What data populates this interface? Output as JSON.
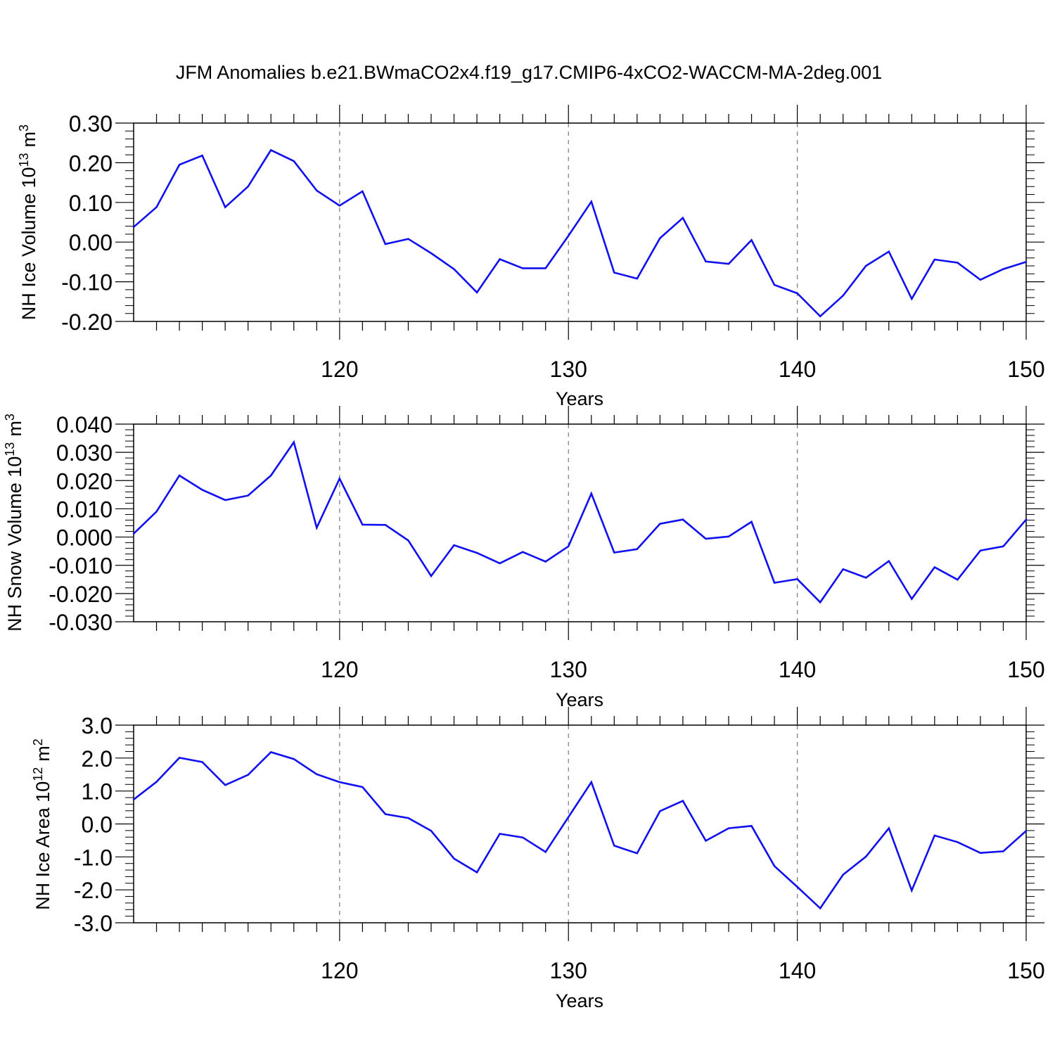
{
  "title": "JFM Anomalies b.e21.BWmaCO2x4.f19_g17.CMIP6-4xCO2-WACCM-MA-2deg.001",
  "colors": {
    "line": "#1010f0",
    "axis": "#000000",
    "grid": "#777777"
  },
  "chart_data": [
    {
      "type": "line",
      "ylabel_main": "NH Ice Volume 10",
      "ylabel_exp": "13",
      "ylabel_unit": "m",
      "ylabel_unit_exp": "3",
      "xlabel": "Years",
      "xlim": [
        111,
        150
      ],
      "ylim": [
        -0.2,
        0.3
      ],
      "ytick_values": [
        -0.2,
        -0.1,
        0.0,
        0.1,
        0.2,
        0.3
      ],
      "ytick_labels": [
        "-0.20",
        "-0.10",
        "0.00",
        "0.10",
        "0.20",
        "0.30"
      ],
      "xtick_values": [
        120,
        130,
        140,
        150
      ],
      "xtick_labels": [
        "120",
        "130",
        "140",
        "150"
      ],
      "gridlines_x": [
        120,
        130,
        140
      ],
      "x": [
        111,
        112,
        113,
        114,
        115,
        116,
        117,
        118,
        119,
        120,
        121,
        122,
        123,
        124,
        125,
        126,
        127,
        128,
        129,
        130,
        131,
        132,
        133,
        134,
        135,
        136,
        137,
        138,
        139,
        140,
        141,
        142,
        143,
        144,
        145,
        146,
        147,
        148,
        149,
        150
      ],
      "values": [
        0.038,
        0.088,
        0.195,
        0.218,
        0.088,
        0.14,
        0.232,
        0.204,
        0.13,
        0.092,
        0.128,
        -0.005,
        0.008,
        -0.028,
        -0.068,
        -0.127,
        -0.043,
        -0.066,
        -0.066,
        0.016,
        0.102,
        -0.077,
        -0.092,
        0.01,
        0.061,
        -0.049,
        -0.055,
        0.005,
        -0.108,
        -0.129,
        -0.187,
        -0.135,
        -0.06,
        -0.024,
        -0.143,
        -0.044,
        -0.052,
        -0.095,
        -0.068,
        -0.05
      ]
    },
    {
      "type": "line",
      "ylabel_main": "NH Snow Volume 10",
      "ylabel_exp": "13",
      "ylabel_unit": "m",
      "ylabel_unit_exp": "3",
      "xlabel": "Years",
      "xlim": [
        111,
        150
      ],
      "ylim": [
        -0.03,
        0.04
      ],
      "ytick_values": [
        -0.03,
        -0.02,
        -0.01,
        0.0,
        0.01,
        0.02,
        0.03,
        0.04
      ],
      "ytick_labels": [
        "-0.030",
        "-0.020",
        "-0.010",
        "0.000",
        "0.010",
        "0.020",
        "0.030",
        "0.040"
      ],
      "xtick_values": [
        120,
        130,
        140,
        150
      ],
      "xtick_labels": [
        "120",
        "130",
        "140",
        "150"
      ],
      "gridlines_x": [
        120,
        130,
        140
      ],
      "x": [
        111,
        112,
        113,
        114,
        115,
        116,
        117,
        118,
        119,
        120,
        121,
        122,
        123,
        124,
        125,
        126,
        127,
        128,
        129,
        130,
        131,
        132,
        133,
        134,
        135,
        136,
        137,
        138,
        139,
        140,
        141,
        142,
        143,
        144,
        145,
        146,
        147,
        148,
        149,
        150
      ],
      "values": [
        0.0012,
        0.009,
        0.0218,
        0.0167,
        0.0131,
        0.0147,
        0.0218,
        0.0336,
        0.0033,
        0.0207,
        0.0044,
        0.0043,
        -0.0012,
        -0.0138,
        -0.0029,
        -0.0056,
        -0.0093,
        -0.0053,
        -0.0087,
        -0.0033,
        0.0154,
        -0.0055,
        -0.0043,
        0.0047,
        0.0062,
        -0.0006,
        0.0002,
        0.0054,
        -0.0162,
        -0.0149,
        -0.0231,
        -0.0114,
        -0.0144,
        -0.0085,
        -0.0219,
        -0.0107,
        -0.0151,
        -0.0048,
        -0.0033,
        0.0062
      ]
    },
    {
      "type": "line",
      "ylabel_main": "NH Ice Area 10",
      "ylabel_exp": "12",
      "ylabel_unit": "m",
      "ylabel_unit_exp": "2",
      "xlabel": "Years",
      "xlim": [
        111,
        150
      ],
      "ylim": [
        -3.0,
        3.0
      ],
      "ytick_values": [
        -3.0,
        -2.0,
        -1.0,
        0.0,
        1.0,
        2.0,
        3.0
      ],
      "ytick_labels": [
        "-3.0",
        "-2.0",
        "-1.0",
        "0.0",
        "1.0",
        "2.0",
        "3.0"
      ],
      "xtick_values": [
        120,
        130,
        140,
        150
      ],
      "xtick_labels": [
        "120",
        "130",
        "140",
        "150"
      ],
      "gridlines_x": [
        120,
        130,
        140
      ],
      "x": [
        111,
        112,
        113,
        114,
        115,
        116,
        117,
        118,
        119,
        120,
        121,
        122,
        123,
        124,
        125,
        126,
        127,
        128,
        129,
        130,
        131,
        132,
        133,
        134,
        135,
        136,
        137,
        138,
        139,
        140,
        141,
        142,
        143,
        144,
        145,
        146,
        147,
        148,
        149,
        150
      ],
      "values": [
        0.74,
        1.28,
        2.01,
        1.88,
        1.18,
        1.49,
        2.18,
        1.97,
        1.51,
        1.27,
        1.12,
        0.3,
        0.18,
        -0.21,
        -1.05,
        -1.47,
        -0.3,
        -0.41,
        -0.85,
        0.21,
        1.27,
        -0.66,
        -0.89,
        0.39,
        0.7,
        -0.51,
        -0.13,
        -0.06,
        -1.28,
        -1.91,
        -2.56,
        -1.54,
        -0.99,
        -0.13,
        -2.02,
        -0.35,
        -0.55,
        -0.88,
        -0.83,
        -0.21
      ]
    }
  ]
}
